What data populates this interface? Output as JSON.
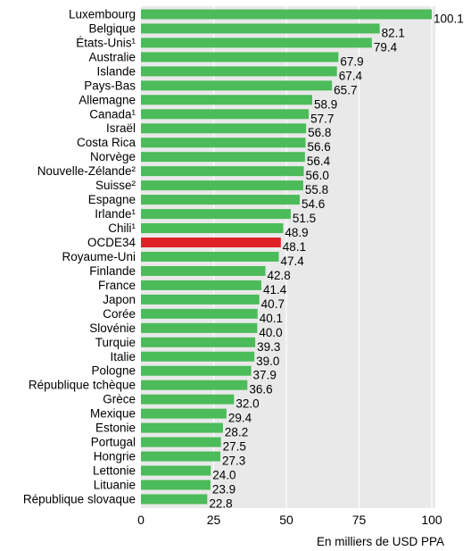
{
  "chart_data": {
    "type": "bar",
    "orientation": "horizontal",
    "title": "",
    "xlabel": "En milliers de USD PPA",
    "ylabel": "",
    "xlim": [
      0,
      100
    ],
    "ticks": [
      0,
      25,
      50,
      75,
      100
    ],
    "grid": true,
    "legend": "none",
    "categories": [
      "Luxembourg",
      "Belgique",
      "États-Unis¹",
      "Australie",
      "Islande",
      "Pays-Bas",
      "Allemagne",
      "Canada¹",
      "Israël",
      "Costa Rica",
      "Norvège",
      "Nouvelle-Zélande²",
      "Suisse²",
      "Espagne",
      "Irlande¹",
      "Chili¹",
      "OCDE34",
      "Royaume-Uni",
      "Finlande",
      "France",
      "Japon",
      "Corée",
      "Slovénie",
      "Turquie",
      "Italie",
      "Pologne",
      "République tchèque",
      "Grèce",
      "Mexique",
      "Estonie",
      "Portugal",
      "Hongrie",
      "Lettonie",
      "Lituanie",
      "République slovaque"
    ],
    "values": [
      100.1,
      82.1,
      79.4,
      67.9,
      67.4,
      65.7,
      58.9,
      57.7,
      56.8,
      56.6,
      56.4,
      56.0,
      55.8,
      54.6,
      51.5,
      48.9,
      48.1,
      47.4,
      42.8,
      41.4,
      40.7,
      40.1,
      40.0,
      39.3,
      39.0,
      37.9,
      36.6,
      32.0,
      29.4,
      28.2,
      27.5,
      27.3,
      24.0,
      23.9,
      22.8
    ],
    "value_labels": [
      "100.1",
      "82.1",
      "79.4",
      "67.9",
      "67.4",
      "65.7",
      "58.9",
      "57.7",
      "56.8",
      "56.6",
      "56.4",
      "56.0",
      "55.8",
      "54.6",
      "51.5",
      "48.9",
      "48.1",
      "47.4",
      "42.8",
      "41.4",
      "40.7",
      "40.1",
      "40.0",
      "39.3",
      "39.0",
      "37.9",
      "36.6",
      "32.0",
      "29.4",
      "28.2",
      "27.5",
      "27.3",
      "24.0",
      "23.9",
      "22.8"
    ],
    "highlight": "OCDE34",
    "colors": {
      "bar": "#4cbb5a",
      "highlight": "#e02228",
      "plot_bg": "#e9e9e9",
      "grid": "#ffffff"
    }
  }
}
